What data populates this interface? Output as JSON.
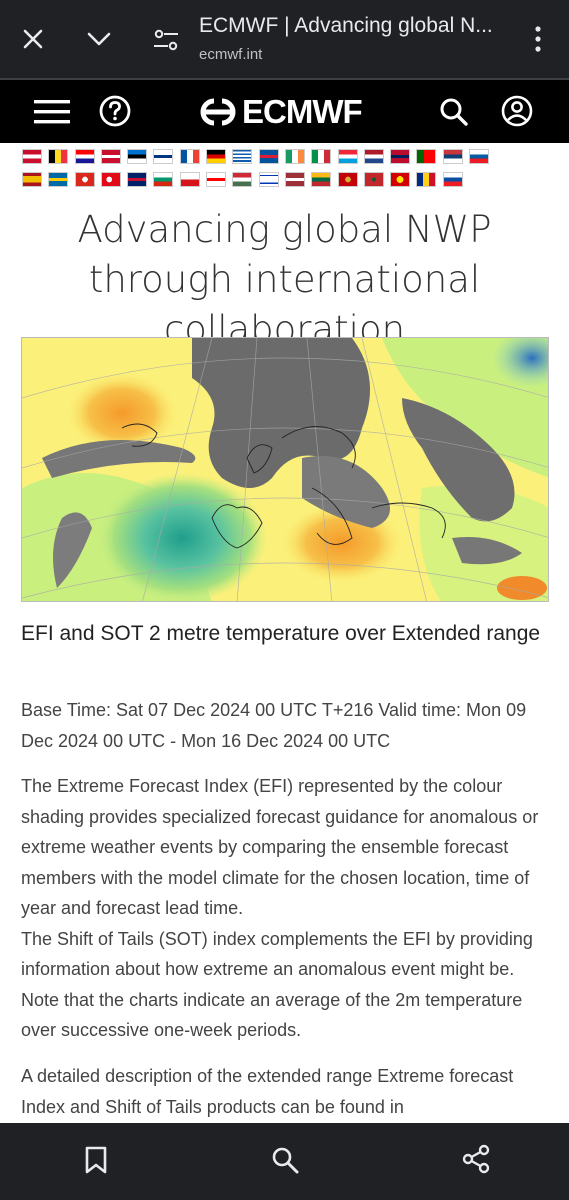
{
  "browser": {
    "tab_title": "ECMWF | Advancing global N...",
    "url": "ecmwf.int"
  },
  "site": {
    "logo_text": "ECMWF",
    "icons": [
      "menu-icon",
      "help-icon",
      "search-icon",
      "account-icon"
    ]
  },
  "languages": {
    "row1": [
      "at",
      "be",
      "hr",
      "dk",
      "ee",
      "fi",
      "fr",
      "de",
      "gr",
      "is",
      "ie",
      "it",
      "lu",
      "nl",
      "no",
      "pt",
      "rs",
      "si"
    ],
    "row2": [
      "es",
      "se",
      "ch",
      "tr",
      "gb",
      "bg",
      "cz",
      "ge",
      "hu",
      "il",
      "lv",
      "lt",
      "me",
      "ma",
      "mk",
      "ro",
      "sk"
    ]
  },
  "page": {
    "headline": "Advancing global NWP through international collaboration",
    "chart_title": "EFI and SOT 2 metre temperature over Extended range",
    "base_time": "Base Time: Sat 07 Dec 2024 00 UTC T+216 Valid time: Mon 09 Dec 2024 00 UTC - Mon 16 Dec 2024 00 UTC",
    "para1_a": "The Extreme Forecast Index (EFI) represented by the colour shading provides specialized forecast guidance for anomalous or extreme weather events by comparing the ensemble forecast members with the model climate for the chosen location, time of year and forecast lead time.",
    "para1_b": "The Shift of Tails (SOT) index complements the EFI by providing information about how extreme an anomalous event might be. Note that the charts indicate an average of the 2m temperature over successive one-week periods.",
    "para2": "A detailed description of the extended range Extreme forecast Index and Shift of Tails products can be found in"
  },
  "colors": {
    "chrome_bg": "#202124",
    "header_bg": "#000000",
    "map_yellow": "#fbf07a",
    "map_grey": "#6b6b6b",
    "map_green": "#c9ef7f",
    "map_orange": "#f7a93c",
    "map_teal": "#39b79a"
  }
}
